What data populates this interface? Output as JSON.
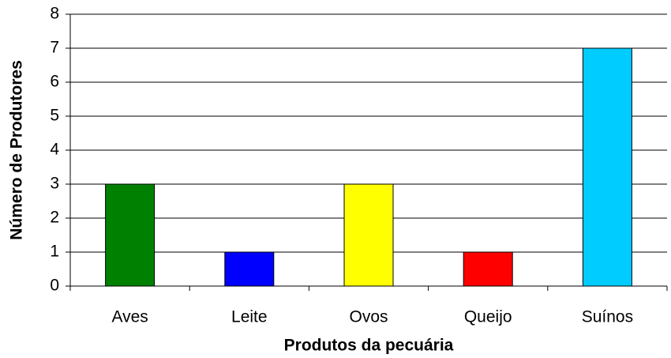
{
  "chart_data": {
    "type": "bar",
    "categories": [
      "Aves",
      "Leite",
      "Ovos",
      "Queijo",
      "Suínos"
    ],
    "values": [
      3,
      1,
      3,
      1,
      7
    ],
    "colors": [
      "#008000",
      "#0000ff",
      "#ffff00",
      "#ff0000",
      "#00ccff"
    ],
    "xlabel": "Produtos da pecuária",
    "ylabel": "Número de Produtores",
    "ylim": [
      0,
      8
    ],
    "yticks": [
      0,
      1,
      2,
      3,
      4,
      5,
      6,
      7,
      8
    ],
    "grid": true
  }
}
